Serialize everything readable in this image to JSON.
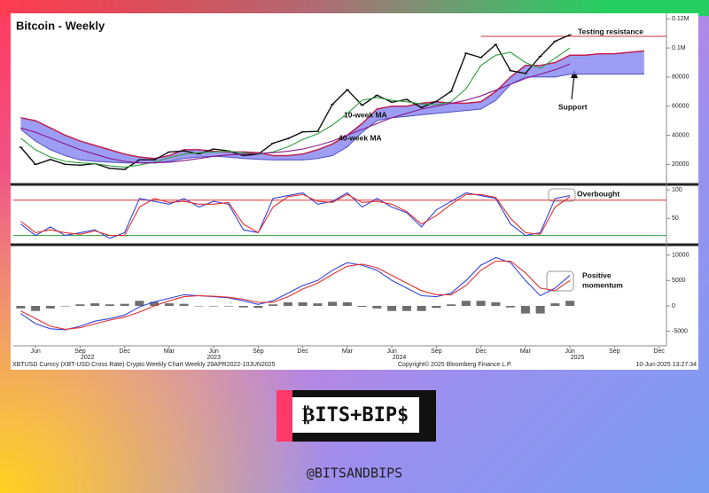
{
  "x_axis": {
    "categories": [
      null,
      "Jun",
      null,
      null,
      "Sep",
      null,
      null,
      "Dec",
      null,
      null,
      "Mar",
      null,
      null,
      "Jun",
      null,
      null,
      "Sep",
      null,
      null,
      "Dec",
      null,
      null,
      "Mar",
      null,
      null,
      "Jun",
      null,
      null,
      "Sep",
      null,
      null,
      "Dec",
      null,
      null,
      "Mar",
      null,
      null,
      "Jun",
      null,
      null,
      "Sep",
      null,
      null,
      "Dec"
    ],
    "years": [
      "2022",
      "2023",
      "2024",
      "2025"
    ]
  },
  "chart_data": [
    {
      "type": "line",
      "title": "Bitcoin - Weekly",
      "series": [
        {
          "color": "#111111",
          "values": [
            31800,
            19900,
            23300,
            20000,
            19400,
            20500,
            17200,
            16500,
            23100,
            23100,
            28500,
            29200,
            27200,
            30500,
            29200,
            26000,
            27000,
            34500,
            37700,
            42300,
            42600,
            61200,
            71300,
            60600,
            67500,
            62700,
            64600,
            59000,
            63300,
            70200,
            96400,
            93400,
            102400,
            84400,
            82500,
            94200,
            104600,
            109000,
            null,
            null,
            null,
            null,
            null,
            null
          ]
        },
        {
          "name": "10-week MA",
          "color": "#2e9e3e",
          "values": [
            38000,
            30000,
            25000,
            22000,
            21000,
            20500,
            19000,
            18000,
            19500,
            21500,
            24500,
            27000,
            28000,
            28500,
            29000,
            28000,
            27000,
            28500,
            32000,
            37000,
            41000,
            47000,
            55000,
            64000,
            66000,
            64000,
            63000,
            61500,
            61000,
            63000,
            72000,
            88000,
            95000,
            97000,
            90000,
            86000,
            93000,
            100000,
            null,
            null,
            null,
            null,
            null,
            null
          ]
        },
        {
          "name": "40-week MA",
          "color": "#8b1a8b",
          "values": [
            45000,
            42000,
            38000,
            34000,
            30000,
            27000,
            24000,
            22000,
            21000,
            21000,
            21500,
            22500,
            24000,
            25500,
            26500,
            27000,
            27500,
            28000,
            29000,
            30500,
            33000,
            36000,
            40000,
            44000,
            48000,
            52000,
            55000,
            58000,
            60000,
            62000,
            64000,
            67000,
            71000,
            75000,
            79000,
            82000,
            85000,
            89000,
            null,
            null,
            null,
            null,
            null,
            null
          ]
        }
      ],
      "cloud": {
        "color": "#8c8cf2",
        "upper": [
          52000,
          50000,
          45000,
          40000,
          36000,
          33000,
          30000,
          27000,
          25000,
          24000,
          26000,
          30000,
          30000,
          29000,
          28500,
          28500,
          28000,
          26000,
          26000,
          27000,
          30000,
          34000,
          40000,
          48000,
          58000,
          60000,
          60000,
          62000,
          63000,
          62000,
          62000,
          63000,
          70000,
          80000,
          88000,
          88000,
          90000,
          95000,
          95000,
          96000,
          96000,
          97000,
          98000,
          null
        ],
        "lower": [
          44000,
          36000,
          30000,
          26000,
          23000,
          22000,
          21500,
          21000,
          21000,
          21000,
          22000,
          24000,
          25000,
          25500,
          25000,
          24000,
          23500,
          23000,
          23000,
          23000,
          24000,
          26000,
          32000,
          42000,
          50000,
          52000,
          53000,
          54000,
          55000,
          56000,
          57000,
          58000,
          64000,
          75000,
          80000,
          80000,
          80000,
          82000,
          82000,
          82000,
          82000,
          82000,
          82000,
          null
        ]
      },
      "resistance": {
        "value": 108000,
        "color": "#d03040"
      },
      "annotations": [
        "Testing resistance",
        "Support"
      ],
      "ylim": [
        8000,
        122000
      ],
      "yticks": [
        20000,
        40000,
        60000,
        80000,
        {
          "value": 100000,
          "label": "0.1M"
        },
        {
          "value": 120000,
          "label": "0.12M"
        }
      ]
    },
    {
      "type": "line",
      "series": [
        {
          "color": "#3344dd",
          "values": [
            40,
            20,
            35,
            20,
            25,
            30,
            15,
            25,
            85,
            80,
            75,
            85,
            70,
            80,
            75,
            30,
            25,
            85,
            90,
            95,
            75,
            80,
            95,
            70,
            85,
            70,
            60,
            35,
            65,
            80,
            95,
            90,
            85,
            40,
            20,
            25,
            85,
            90,
            null,
            null,
            null,
            null,
            null,
            null
          ]
        },
        {
          "color": "#e03030",
          "values": [
            45,
            25,
            30,
            25,
            22,
            28,
            20,
            20,
            70,
            85,
            78,
            80,
            75,
            75,
            78,
            40,
            25,
            70,
            88,
            92,
            80,
            78,
            92,
            78,
            80,
            75,
            62,
            40,
            55,
            75,
            92,
            92,
            87,
            50,
            25,
            22,
            70,
            88,
            null,
            null,
            null,
            null,
            null,
            null
          ]
        }
      ],
      "levels": [
        {
          "value": 82,
          "color": "#e03030"
        },
        {
          "value": 20,
          "color": "#2a9a3a"
        }
      ],
      "annotations": [
        "Overbought"
      ],
      "ylim": [
        10,
        105
      ],
      "yticks": [
        50,
        100
      ]
    },
    {
      "type": "line",
      "series": [
        {
          "color": "#3344dd",
          "values": [
            -1500,
            -3500,
            -4500,
            -4700,
            -4000,
            -3000,
            -2500,
            -1800,
            -200,
            800,
            1500,
            2200,
            2000,
            1800,
            1600,
            1000,
            300,
            1000,
            2500,
            4000,
            5000,
            7000,
            8500,
            8000,
            7000,
            5000,
            3500,
            2000,
            1800,
            2500,
            5000,
            8000,
            9500,
            8500,
            5000,
            2000,
            3500,
            6000,
            null,
            null,
            null,
            null,
            null,
            null
          ]
        },
        {
          "color": "#e03030",
          "values": [
            -1000,
            -2500,
            -4000,
            -4600,
            -4300,
            -3500,
            -2800,
            -2200,
            -1200,
            0,
            1000,
            1800,
            2000,
            1900,
            1700,
            1300,
            700,
            700,
            1800,
            3300,
            4500,
            6200,
            7800,
            8200,
            7500,
            6000,
            4500,
            3000,
            2200,
            2200,
            4000,
            7000,
            8800,
            8800,
            6500,
            3500,
            3000,
            5000,
            null,
            null,
            null,
            null,
            null,
            null
          ]
        }
      ],
      "histogram": {
        "color": "#6e6e6e",
        "values": [
          -500,
          -1000,
          -500,
          -100,
          300,
          500,
          300,
          400,
          1000,
          800,
          500,
          400,
          0,
          -100,
          -100,
          -300,
          -400,
          300,
          700,
          700,
          500,
          800,
          700,
          -200,
          -500,
          -1000,
          -1000,
          -1000,
          -400,
          300,
          1000,
          1000,
          700,
          -300,
          -1500,
          -1500,
          500,
          1000,
          null,
          null,
          null,
          null,
          null,
          null
        ]
      },
      "annotations": [
        "Positive",
        "momentum"
      ],
      "ylim": [
        -7500,
        11500
      ],
      "yticks": [
        -5000,
        0,
        5000,
        10000
      ]
    }
  ],
  "footer": {
    "left": "XBTUSD Curncy (XBT-USD Cross Rate) Crypto Weekly Chart  Weekly 29APR2022-10JUN2025",
    "center": "Copyright© 2025 Bloomberg Finance L.P.",
    "right": "10-Jun-2025 13:27:34"
  },
  "brand": {
    "logo": "₿ITS+BIP$",
    "handle": "@BITSANDBIPS"
  }
}
